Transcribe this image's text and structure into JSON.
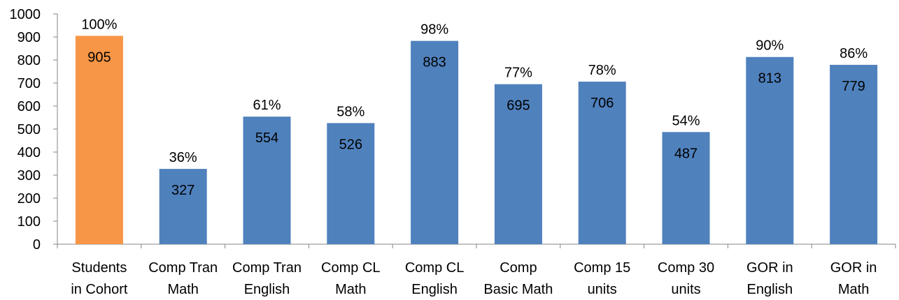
{
  "chart_data": {
    "type": "bar",
    "title": "",
    "xlabel": "",
    "ylabel": "",
    "ylim": [
      0,
      1000
    ],
    "yticks": [
      0,
      100,
      200,
      300,
      400,
      500,
      600,
      700,
      800,
      900,
      1000
    ],
    "grid": false,
    "legend": "none",
    "categories": [
      [
        "Students",
        "in Cohort"
      ],
      [
        "Comp Tran",
        "Math"
      ],
      [
        "Comp Tran",
        "English"
      ],
      [
        "Comp CL",
        "Math"
      ],
      [
        "Comp CL",
        "English"
      ],
      [
        "Comp",
        "Basic Math"
      ],
      [
        "Comp 15",
        "units"
      ],
      [
        "Comp 30",
        "units"
      ],
      [
        "GOR in",
        "English"
      ],
      [
        "GOR in",
        "Math"
      ]
    ],
    "values": [
      905,
      327,
      554,
      526,
      883,
      695,
      706,
      487,
      813,
      779
    ],
    "percent_labels": [
      "100%",
      "36%",
      "61%",
      "58%",
      "98%",
      "77%",
      "78%",
      "54%",
      "90%",
      "86%"
    ],
    "colors": [
      "#F79646",
      "#4F81BD",
      "#4F81BD",
      "#4F81BD",
      "#4F81BD",
      "#4F81BD",
      "#4F81BD",
      "#4F81BD",
      "#4F81BD",
      "#4F81BD"
    ]
  }
}
